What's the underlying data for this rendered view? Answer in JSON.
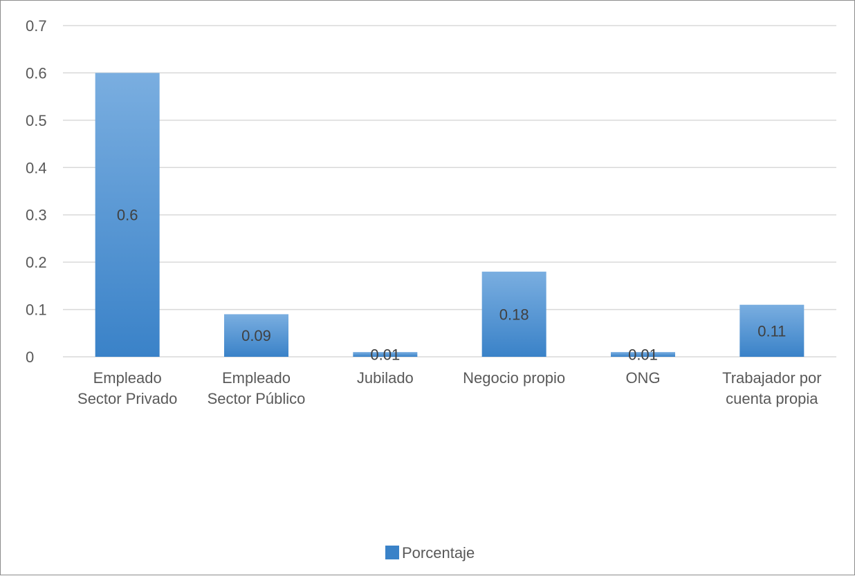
{
  "chart_data": {
    "type": "bar",
    "categories": [
      [
        "Empleado",
        "Sector Privado"
      ],
      [
        "Empleado",
        "Sector Público"
      ],
      [
        "Jubilado"
      ],
      [
        "Negocio propio"
      ],
      [
        "ONG"
      ],
      [
        "Trabajador por",
        "cuenta propia"
      ]
    ],
    "series": [
      {
        "name": "Porcentaje",
        "values": [
          0.6,
          0.09,
          0.01,
          0.18,
          0.01,
          0.11
        ],
        "data_labels": [
          "0.6",
          "0.09",
          "0.01",
          "0.18",
          "0.01",
          "0.11"
        ]
      }
    ],
    "ylim": [
      0,
      0.7
    ],
    "yticks": [
      "0",
      "0.1",
      "0.2",
      "0.3",
      "0.4",
      "0.5",
      "0.6",
      "0.7"
    ],
    "grid": true,
    "legend_position": "bottom",
    "colors": {
      "bar_top": "#7aaee0",
      "bar_bottom": "#3a82c8",
      "gridline": "#d9d9d9",
      "text": "#595959"
    }
  }
}
